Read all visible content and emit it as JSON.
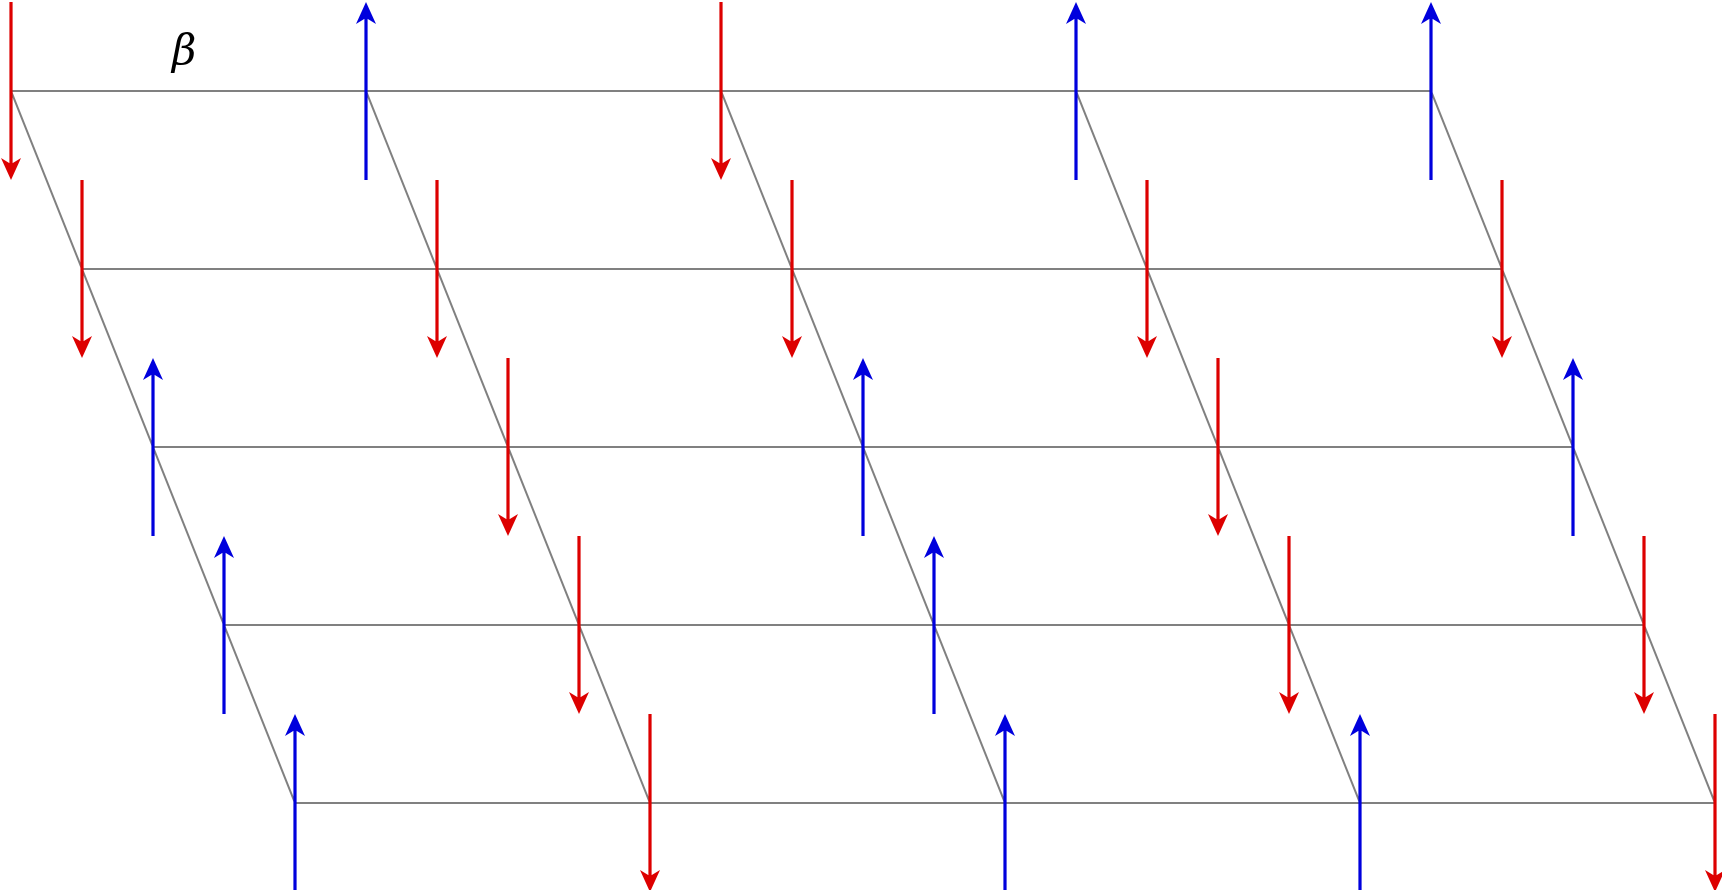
{
  "diagram": {
    "angle_label": "β",
    "lattice": {
      "rows": 5,
      "cols": 5
    },
    "colors": {
      "spin_up": "#0000dd",
      "spin_down": "#dd0000",
      "grid": "#808080"
    },
    "spins": [
      [
        "down",
        "up",
        "down",
        "up",
        "up"
      ],
      [
        "down",
        "down",
        "down",
        "down",
        "down"
      ],
      [
        "up",
        "down",
        "up",
        "down",
        "up"
      ],
      [
        "up",
        "down",
        "up",
        "down",
        "down"
      ],
      [
        "up",
        "down",
        "up",
        "up",
        "down"
      ]
    ]
  }
}
